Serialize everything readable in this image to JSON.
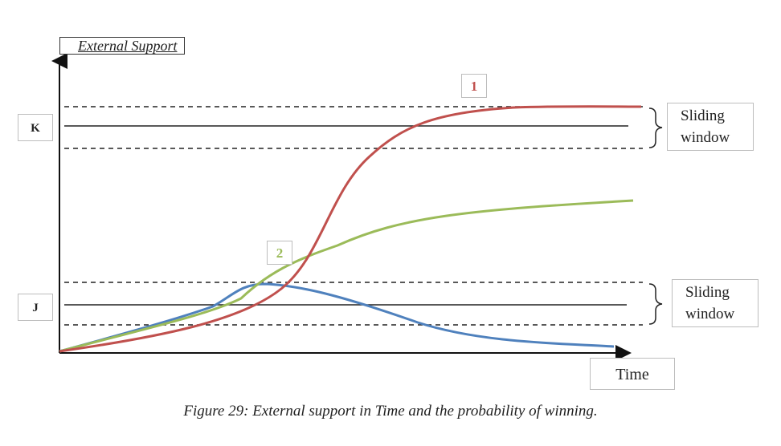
{
  "axes": {
    "y_label": "External Support",
    "x_label": "Time"
  },
  "levels": {
    "k_label": "K",
    "j_label": "J"
  },
  "windows": {
    "top": {
      "line1": "Sliding",
      "line2": "window"
    },
    "bottom": {
      "line1": "Sliding",
      "line2": "window"
    }
  },
  "curves": [
    {
      "label": "1",
      "color": "#c0504d"
    },
    {
      "label": "2",
      "color": "#9bbb59"
    },
    {
      "color": "#4f81bd"
    }
  ],
  "caption": "Figure 29: External support in Time and the probability of winning."
}
